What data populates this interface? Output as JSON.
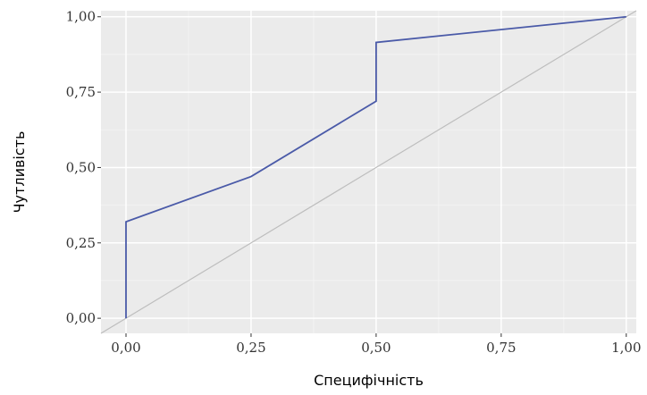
{
  "chart_data": {
    "type": "line",
    "title": "",
    "xlabel": "Специфічність",
    "ylabel": "Чутливість",
    "xlim": [
      -0.05,
      1.02
    ],
    "ylim": [
      -0.05,
      1.02
    ],
    "x_ticks": [
      0,
      0.25,
      0.5,
      0.75,
      1
    ],
    "y_ticks": [
      0,
      0.25,
      0.5,
      0.75,
      1
    ],
    "x_tick_labels": [
      "0,00",
      "0,25",
      "0,50",
      "0,75",
      "1,00"
    ],
    "y_tick_labels": [
      "0,00",
      "0,25",
      "0,50",
      "0,75",
      "1,00"
    ],
    "grid": true,
    "series": [
      {
        "x": [
          0,
          0,
          0.25,
          0.5,
          0.5,
          1
        ],
        "y": [
          0,
          0.32,
          0.47,
          0.72,
          0.915,
          1
        ],
        "color": "#4a5aa8"
      }
    ],
    "reference_line": {
      "x": [
        -0.05,
        1.02
      ],
      "y": [
        -0.05,
        1.02
      ],
      "color": "#bdbdbd"
    },
    "colors": {
      "panel": "#ebebeb",
      "grid_major": "#ffffff",
      "grid_minor": "#f4f4f4"
    }
  }
}
